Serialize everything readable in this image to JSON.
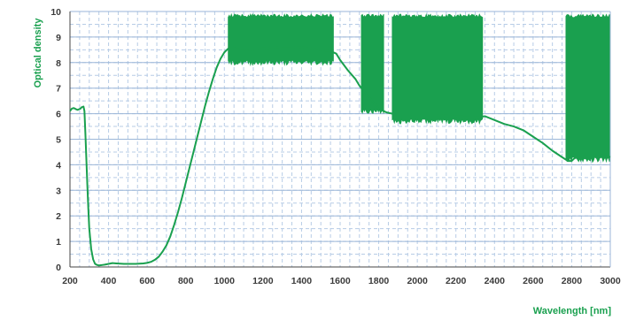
{
  "chart_data": {
    "type": "line",
    "title": "",
    "xlabel": "Wavelength [nm]",
    "ylabel": "Optical density",
    "xlim": [
      200,
      3000
    ],
    "ylim": [
      0,
      10
    ],
    "x_ticks": [
      200,
      400,
      600,
      800,
      1000,
      1200,
      1400,
      1600,
      1800,
      2000,
      2200,
      2400,
      2600,
      2800,
      3000
    ],
    "y_ticks": [
      0,
      1,
      2,
      3,
      4,
      5,
      6,
      7,
      8,
      9,
      10
    ],
    "grid": true,
    "legend": "none",
    "series": [
      {
        "color": "#1aa04f",
        "x": [
          200,
          210,
          220,
          230,
          240,
          255,
          260,
          270,
          275,
          280,
          290,
          295,
          300,
          310,
          320,
          330,
          340,
          350,
          360,
          370,
          380,
          400,
          420,
          440,
          460,
          480,
          500,
          520,
          540,
          560,
          580,
          600,
          620,
          640,
          660,
          680,
          700,
          720,
          740,
          760,
          780,
          800,
          820,
          840,
          860,
          880,
          900,
          920,
          940,
          960,
          980,
          1000,
          1020,
          1040,
          1060,
          1080,
          1100,
          1150,
          1200,
          1250,
          1300,
          1350,
          1400,
          1450,
          1500,
          1550,
          1580,
          1600,
          1640,
          1680,
          1700,
          1720,
          1760,
          1800,
          1840,
          1900,
          2000,
          2100,
          2200,
          2300,
          2350,
          2400,
          2450,
          2500,
          2550,
          2600,
          2650,
          2700,
          2750,
          2780,
          2800,
          2820,
          2850,
          2900,
          2950,
          3000
        ],
        "y": [
          6.1,
          6.2,
          6.22,
          6.18,
          6.15,
          6.2,
          6.25,
          6.28,
          6.1,
          5.2,
          3.2,
          2.3,
          1.5,
          0.7,
          0.3,
          0.12,
          0.08,
          0.06,
          0.07,
          0.08,
          0.09,
          0.12,
          0.15,
          0.14,
          0.13,
          0.12,
          0.12,
          0.12,
          0.12,
          0.13,
          0.14,
          0.16,
          0.2,
          0.28,
          0.4,
          0.6,
          0.85,
          1.2,
          1.65,
          2.15,
          2.7,
          3.3,
          3.9,
          4.5,
          5.1,
          5.7,
          6.3,
          6.85,
          7.35,
          7.8,
          8.15,
          8.4,
          8.55,
          8.6,
          8.55,
          8.5,
          8.48,
          8.5,
          8.55,
          8.6,
          8.62,
          8.62,
          8.6,
          8.55,
          8.5,
          8.45,
          8.35,
          8.1,
          7.7,
          7.35,
          7.1,
          6.9,
          6.55,
          6.2,
          6.05,
          5.95,
          5.95,
          5.95,
          5.9,
          5.85,
          5.9,
          5.75,
          5.6,
          5.5,
          5.35,
          5.1,
          4.85,
          4.55,
          4.3,
          4.15,
          4.15,
          4.3,
          4.4,
          4.45,
          4.4,
          4.3
        ],
        "noise_bands": [
          {
            "x": [
              1020,
              1570
            ],
            "y_min": 7.9,
            "y_max": 9.9
          },
          {
            "x": [
              1710,
              1830
            ],
            "y_min": 6.0,
            "y_max": 9.9
          },
          {
            "x": [
              1870,
              2340
            ],
            "y_min": 5.6,
            "y_max": 9.9
          },
          {
            "x": [
              2770,
              3000
            ],
            "y_min": 4.1,
            "y_max": 9.9
          }
        ]
      }
    ]
  }
}
